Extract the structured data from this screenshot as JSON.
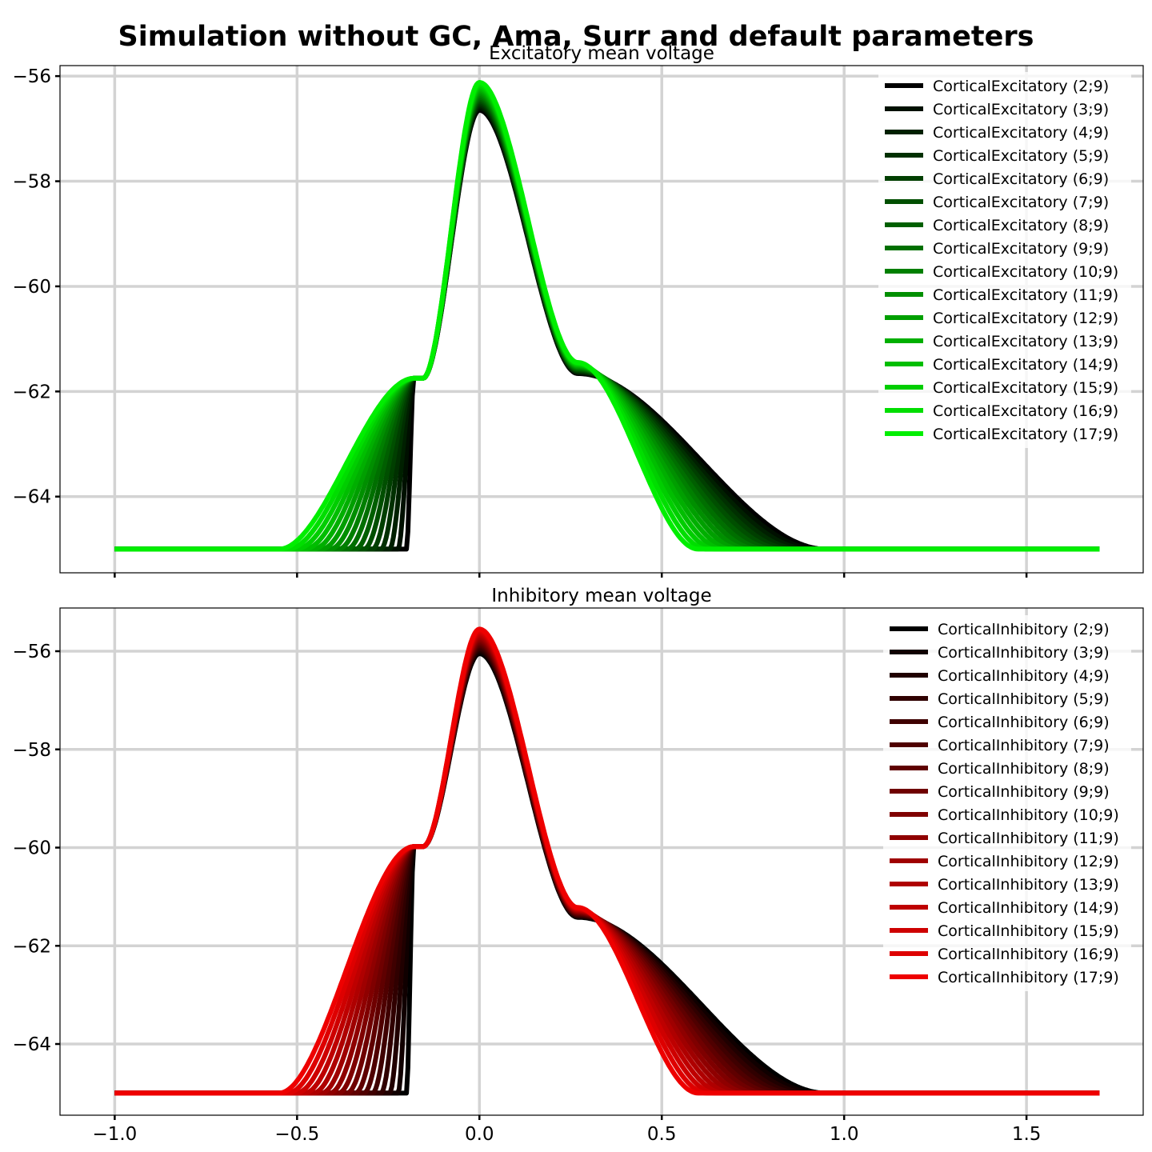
{
  "title": "Simulation without GC, Ama, Surr and default parameters",
  "chart_data": [
    {
      "type": "line",
      "title": "Excitatory mean voltage",
      "xlabel": "",
      "ylabel": "",
      "xlim": [
        -1.15,
        1.82
      ],
      "ylim": [
        -65.45,
        -55.8
      ],
      "x_ticks": [
        -1.0,
        -0.5,
        0.0,
        0.5,
        1.0,
        1.5
      ],
      "x_tick_labels": [],
      "y_ticks": [
        -64,
        -62,
        -60,
        -58,
        -56
      ],
      "y_tick_labels": [
        "−64",
        "−62",
        "−60",
        "−58",
        "−56"
      ],
      "grid": true,
      "legend_position": "top-right",
      "color_start": "#000000",
      "color_end": "#00ee00",
      "baseline": -65.0,
      "peak_x": 0.0,
      "peak_y_range": [
        -56.65,
        -56.12
      ],
      "shoulder_y": -61.75,
      "shoulder_x": -0.18,
      "onset_x_range": [
        -0.2,
        -0.55
      ],
      "decay_end_x_range": [
        0.6,
        0.95
      ],
      "x_range": [
        -1.0,
        1.7
      ],
      "series": [
        {
          "name": "CorticalExcitatory (2;9)"
        },
        {
          "name": "CorticalExcitatory (3;9)"
        },
        {
          "name": "CorticalExcitatory (4;9)"
        },
        {
          "name": "CorticalExcitatory (5;9)"
        },
        {
          "name": "CorticalExcitatory (6;9)"
        },
        {
          "name": "CorticalExcitatory (7;9)"
        },
        {
          "name": "CorticalExcitatory (8;9)"
        },
        {
          "name": "CorticalExcitatory (9;9)"
        },
        {
          "name": "CorticalExcitatory (10;9)"
        },
        {
          "name": "CorticalExcitatory (11;9)"
        },
        {
          "name": "CorticalExcitatory (12;9)"
        },
        {
          "name": "CorticalExcitatory (13;9)"
        },
        {
          "name": "CorticalExcitatory (14;9)"
        },
        {
          "name": "CorticalExcitatory (15;9)"
        },
        {
          "name": "CorticalExcitatory (16;9)"
        },
        {
          "name": "CorticalExcitatory (17;9)"
        }
      ]
    },
    {
      "type": "line",
      "title": "Inhibitory mean voltage",
      "xlabel": "",
      "ylabel": "",
      "xlim": [
        -1.15,
        1.82
      ],
      "ylim": [
        -65.45,
        -55.12
      ],
      "x_ticks": [
        -1.0,
        -0.5,
        0.0,
        0.5,
        1.0,
        1.5
      ],
      "x_tick_labels": [
        "−1.0",
        "−0.5",
        "0.0",
        "0.5",
        "1.0",
        "1.5"
      ],
      "y_ticks": [
        -64,
        -62,
        -60,
        -58,
        -56
      ],
      "y_tick_labels": [
        "−64",
        "−62",
        "−60",
        "−58",
        "−56"
      ],
      "grid": true,
      "legend_position": "top-right",
      "color_start": "#000000",
      "color_end": "#ee0000",
      "baseline": -65.0,
      "peak_x": 0.0,
      "peak_y_range": [
        -56.05,
        -55.55
      ],
      "shoulder_y": -59.98,
      "shoulder_x": -0.18,
      "onset_x_range": [
        -0.2,
        -0.55
      ],
      "decay_end_x_range": [
        0.6,
        0.95
      ],
      "x_range": [
        -1.0,
        1.7
      ],
      "series": [
        {
          "name": "CorticalInhibitory (2;9)"
        },
        {
          "name": "CorticalInhibitory (3;9)"
        },
        {
          "name": "CorticalInhibitory (4;9)"
        },
        {
          "name": "CorticalInhibitory (5;9)"
        },
        {
          "name": "CorticalInhibitory (6;9)"
        },
        {
          "name": "CorticalInhibitory (7;9)"
        },
        {
          "name": "CorticalInhibitory (8;9)"
        },
        {
          "name": "CorticalInhibitory (9;9)"
        },
        {
          "name": "CorticalInhibitory (10;9)"
        },
        {
          "name": "CorticalInhibitory (11;9)"
        },
        {
          "name": "CorticalInhibitory (12;9)"
        },
        {
          "name": "CorticalInhibitory (13;9)"
        },
        {
          "name": "CorticalInhibitory (14;9)"
        },
        {
          "name": "CorticalInhibitory (15;9)"
        },
        {
          "name": "CorticalInhibitory (16;9)"
        },
        {
          "name": "CorticalInhibitory (17;9)"
        }
      ]
    }
  ]
}
